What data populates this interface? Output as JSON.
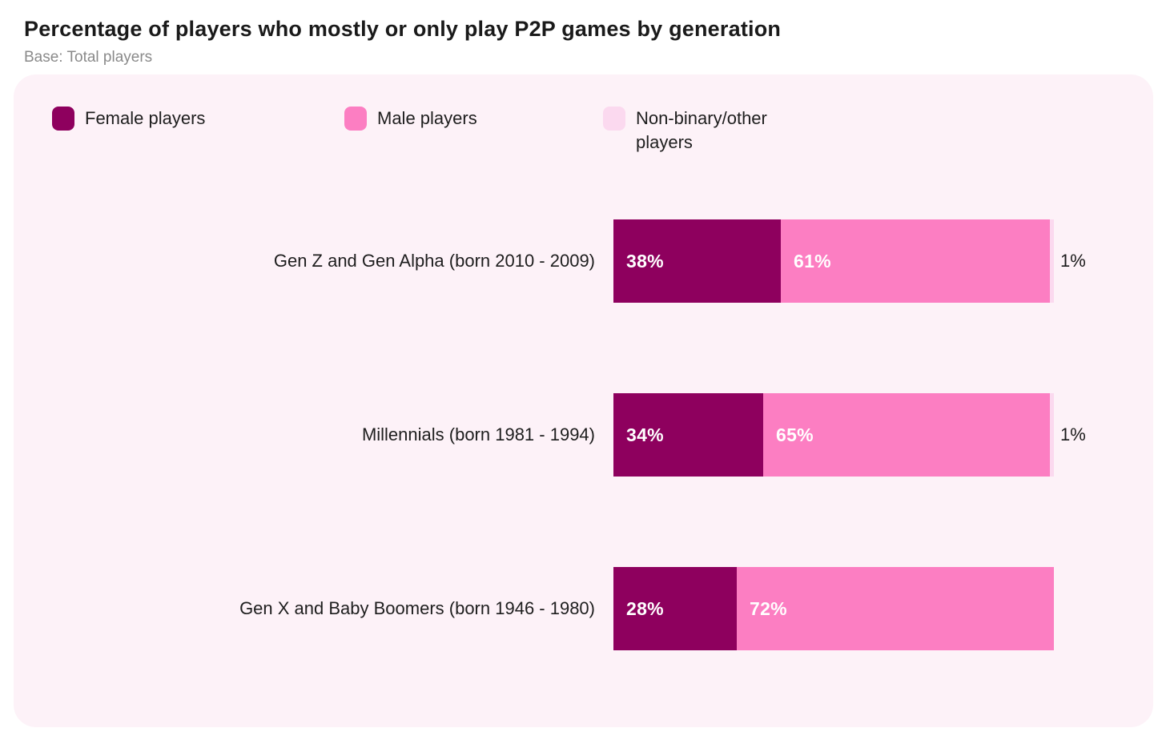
{
  "title": "Percentage of players who mostly or only play P2P games by generation",
  "subtitle": "Base: Total players",
  "colors": {
    "page_bg": "#FFFFFF",
    "card_bg": "#FDF2F8",
    "female": "#8E005E",
    "male": "#FC7EC2",
    "nonbinary": "#FBD9EF",
    "title_text": "#1A1A1A",
    "subtitle_text": "#8A8A8A",
    "inside_value_text": "#FFFFFF",
    "outside_value_text": "#1A1A1A"
  },
  "legend": {
    "items": [
      {
        "label": "Female players",
        "color": "#8E005E"
      },
      {
        "label": "Male players",
        "color": "#FC7EC2"
      },
      {
        "label": "Non-binary/other players",
        "color": "#FBD9EF"
      }
    ]
  },
  "chart_data": {
    "type": "bar",
    "orientation": "horizontal",
    "stacked": true,
    "unit": "%",
    "title": "Percentage of players who mostly or only play P2P games by generation",
    "subtitle": "Base: Total players",
    "categories": [
      "Gen Z and Gen Alpha (born 2010 - 2009)",
      "Millennials (born 1981 - 1994)",
      "Gen X and Baby Boomers (born 1946 - 1980)"
    ],
    "series": [
      {
        "name": "Female players",
        "color": "#8E005E",
        "values": [
          38,
          34,
          28
        ]
      },
      {
        "name": "Male players",
        "color": "#FC7EC2",
        "values": [
          61,
          65,
          72
        ]
      },
      {
        "name": "Non-binary/other players",
        "color": "#FBD9EF",
        "values": [
          1,
          1,
          0
        ]
      }
    ],
    "xlim": [
      0,
      100
    ],
    "grid": false,
    "axis_ticks": false,
    "legend_position": "top",
    "value_label_format": "{value}%"
  }
}
